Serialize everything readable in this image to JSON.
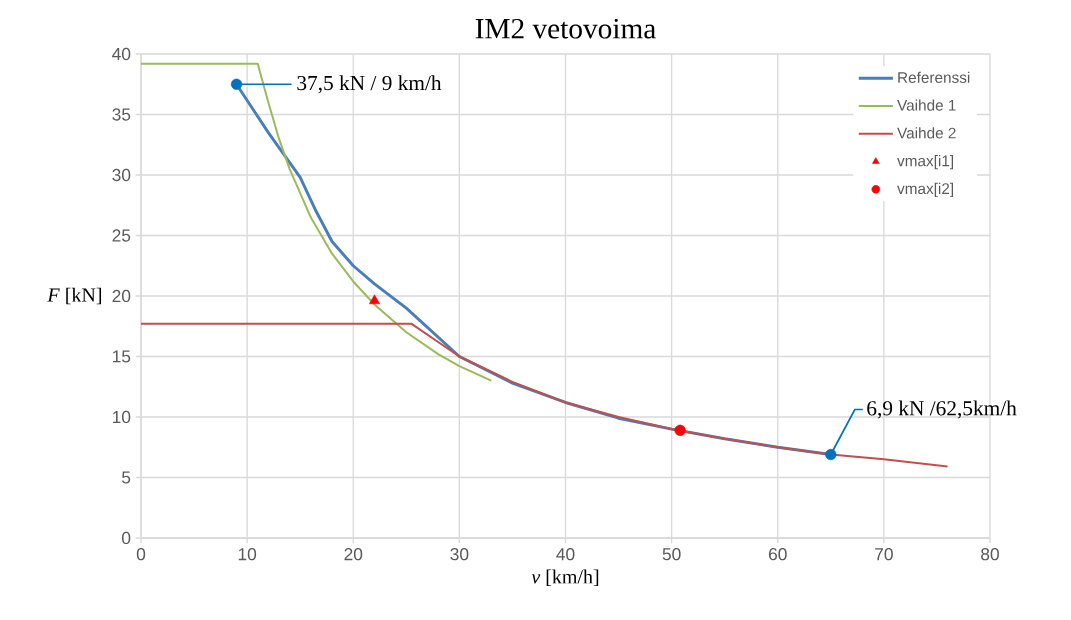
{
  "chart_data": {
    "type": "line",
    "title": "IM2 vetovoima",
    "xlabel": "*v* [km/h]",
    "ylabel": "*F* [kN]",
    "xlim": [
      0,
      80
    ],
    "ylim": [
      0,
      40
    ],
    "xticks": [
      0,
      10,
      20,
      30,
      40,
      50,
      60,
      70,
      80
    ],
    "yticks": [
      0,
      5,
      10,
      15,
      20,
      25,
      30,
      35,
      40
    ],
    "grid": true,
    "legend": "top right",
    "series": [
      {
        "name": "Referenssi",
        "color": "#4a7ebb",
        "x": [
          9,
          12,
          15,
          16.5,
          18,
          20,
          22,
          25,
          30,
          35,
          40,
          45,
          50,
          55,
          60,
          65
        ],
        "values": [
          37.5,
          33.5,
          29.8,
          27,
          24.5,
          22.5,
          21,
          19,
          15,
          12.8,
          11.2,
          9.9,
          9,
          8.2,
          7.5,
          6.9
        ]
      },
      {
        "name": "Vaihde 1",
        "color": "#9bbb59",
        "x": [
          0,
          11,
          12,
          13,
          14,
          15,
          16,
          18,
          20,
          22,
          25,
          28,
          30,
          33
        ],
        "values": [
          39.2,
          39.2,
          36,
          33,
          30.5,
          28.5,
          26.5,
          23.5,
          21.2,
          19.3,
          17,
          15.2,
          14.2,
          13
        ]
      },
      {
        "name": "Vaihde 2",
        "color": "#c0504d",
        "x": [
          0,
          25.5,
          30,
          35,
          40,
          45,
          50,
          55,
          60,
          65,
          70,
          76
        ],
        "values": [
          17.7,
          17.7,
          15,
          12.9,
          11.2,
          10,
          9,
          8.2,
          7.5,
          6.9,
          6.5,
          5.9
        ]
      },
      {
        "name": "vmax[i1]",
        "type": "scatter",
        "marker": "triangle",
        "color": "#ff0000",
        "x": [
          22
        ],
        "values": [
          19.6
        ]
      },
      {
        "name": "vmax[i2]",
        "type": "scatter",
        "marker": "circle",
        "color": "#ff0000",
        "x": [
          50.8
        ],
        "values": [
          8.9
        ]
      },
      {
        "type": "scatter",
        "marker": "circle",
        "color": "#0070c0",
        "x": [
          9,
          65
        ],
        "values": [
          37.5,
          6.9
        ]
      }
    ],
    "annotations": [
      {
        "text": "37,5 kN / 9 km/h",
        "x": 9,
        "y": 37.5
      },
      {
        "text": "6,9 kN /62,5km/h",
        "x": 65,
        "y": 6.9
      }
    ]
  }
}
